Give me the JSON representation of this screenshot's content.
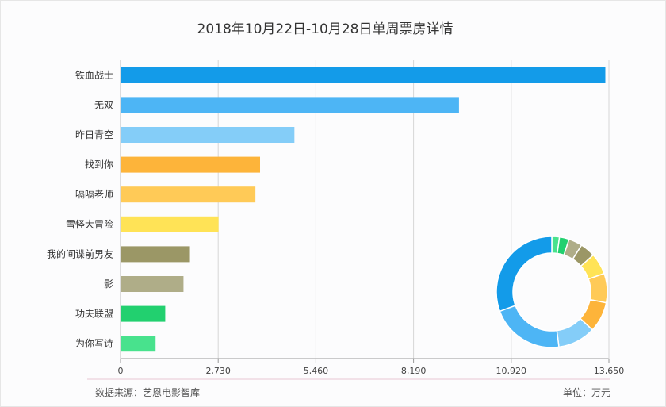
{
  "chart_data": {
    "type": "bar",
    "orientation": "horizontal",
    "title": "2018年10月22日-10月28日单周票房详情",
    "categories": [
      "铁血战士",
      "无双",
      "昨日青空",
      "找到你",
      "嗝嗝老师",
      "雪怪大冒险",
      "我的间谍前男友",
      "影",
      "功夫联盟",
      "为你写诗"
    ],
    "values": [
      13550,
      9460,
      4860,
      3900,
      3770,
      2740,
      1940,
      1760,
      1250,
      980
    ],
    "colors": [
      "#139be9",
      "#4db5f5",
      "#84cdf8",
      "#fdb43a",
      "#ffca57",
      "#ffe356",
      "#9b9766",
      "#afad88",
      "#22d06f",
      "#48e28d"
    ],
    "x_ticks": [
      "0",
      "2,730",
      "5,460",
      "8,190",
      "10,920",
      "13,650"
    ],
    "xlim": [
      0,
      13650
    ],
    "grid": true,
    "source": "数据来源：艺恩电影智库",
    "unit": "单位：万元",
    "donut": {
      "type": "pie",
      "values": [
        13550,
        9460,
        4860,
        3900,
        3770,
        2740,
        1940,
        1760,
        1250,
        980
      ]
    }
  }
}
